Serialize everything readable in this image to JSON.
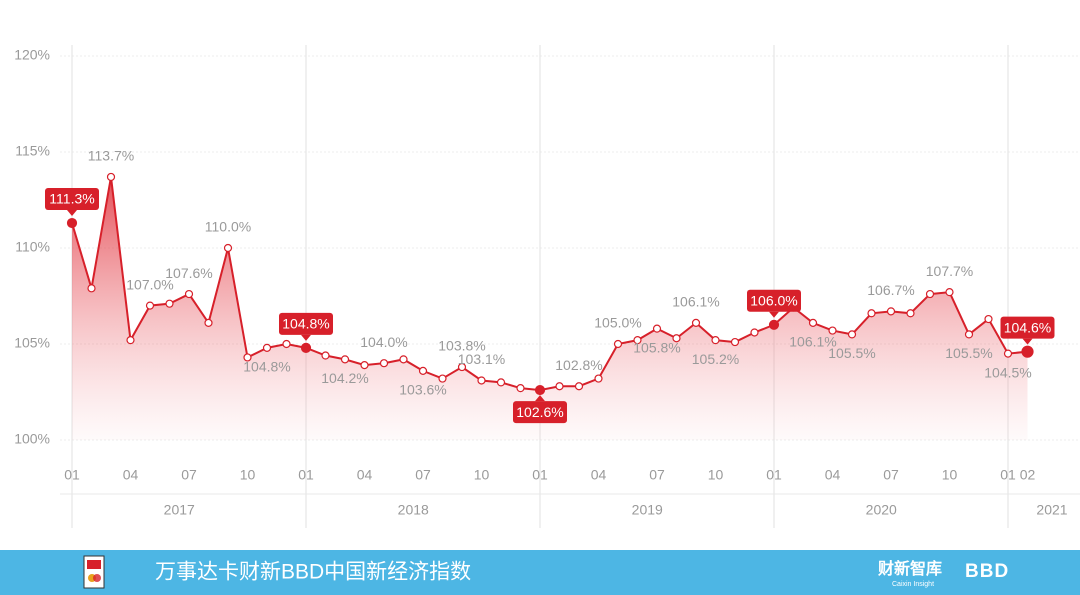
{
  "chart_data": {
    "type": "line",
    "categories": [
      "01",
      null,
      null,
      "04",
      null,
      null,
      "07",
      null,
      null,
      "10",
      null,
      null,
      "01",
      null,
      null,
      "04",
      null,
      null,
      "07",
      null,
      null,
      "10",
      null,
      null,
      "01",
      null,
      null,
      "04",
      null,
      null,
      "07",
      null,
      null,
      "10",
      null,
      null,
      "01",
      null,
      null,
      "04",
      null,
      null,
      "07",
      null,
      null,
      "10",
      null,
      null,
      "01",
      "02"
    ],
    "year_labels": [
      "2017",
      "2018",
      "2019",
      "2020",
      "2021"
    ],
    "values": [
      111.3,
      107.9,
      113.7,
      105.2,
      107.0,
      107.1,
      107.6,
      106.1,
      110.0,
      104.3,
      104.8,
      105.0,
      104.8,
      104.4,
      104.2,
      103.9,
      104.0,
      104.2,
      103.6,
      103.2,
      103.8,
      103.1,
      103.0,
      102.7,
      102.6,
      102.8,
      102.8,
      103.2,
      105.0,
      105.2,
      105.8,
      105.3,
      106.1,
      105.2,
      105.1,
      105.6,
      106.0,
      106.9,
      106.1,
      105.7,
      105.5,
      106.6,
      106.7,
      106.6,
      107.6,
      107.7,
      105.5,
      106.3,
      104.5,
      104.6
    ],
    "value_labels": [
      "111.3%",
      null,
      "113.7%",
      null,
      "107.0%",
      null,
      "107.6%",
      null,
      "110.0%",
      null,
      "104.8%",
      null,
      "104.8%",
      null,
      "104.2%",
      null,
      "104.0%",
      null,
      "103.6%",
      null,
      "103.8%",
      "103.1%",
      null,
      null,
      "102.6%",
      null,
      "102.8%",
      null,
      "105.0%",
      null,
      "105.8%",
      null,
      "106.1%",
      "105.2%",
      null,
      null,
      "106.0%",
      null,
      "106.1%",
      null,
      "105.5%",
      null,
      "106.7%",
      null,
      null,
      "107.7%",
      "105.5%",
      null,
      "104.5%",
      "104.6%"
    ],
    "highlighted": [
      0,
      12,
      24,
      36,
      49
    ],
    "color": "#d7202a",
    "ylim": [
      100,
      120
    ],
    "yticks": [
      {
        "value": 100,
        "label": "100%"
      },
      {
        "value": 105,
        "label": "105%"
      },
      {
        "value": 110,
        "label": "110%"
      },
      {
        "value": 115,
        "label": "115%"
      },
      {
        "value": 120,
        "label": "120%"
      }
    ],
    "grid": true
  },
  "footer": {
    "title": "万事达卡财新BBD中国新经济指数",
    "brand": "财新智库",
    "brand_sub": "Caixin Insight",
    "partner": "BBD"
  }
}
